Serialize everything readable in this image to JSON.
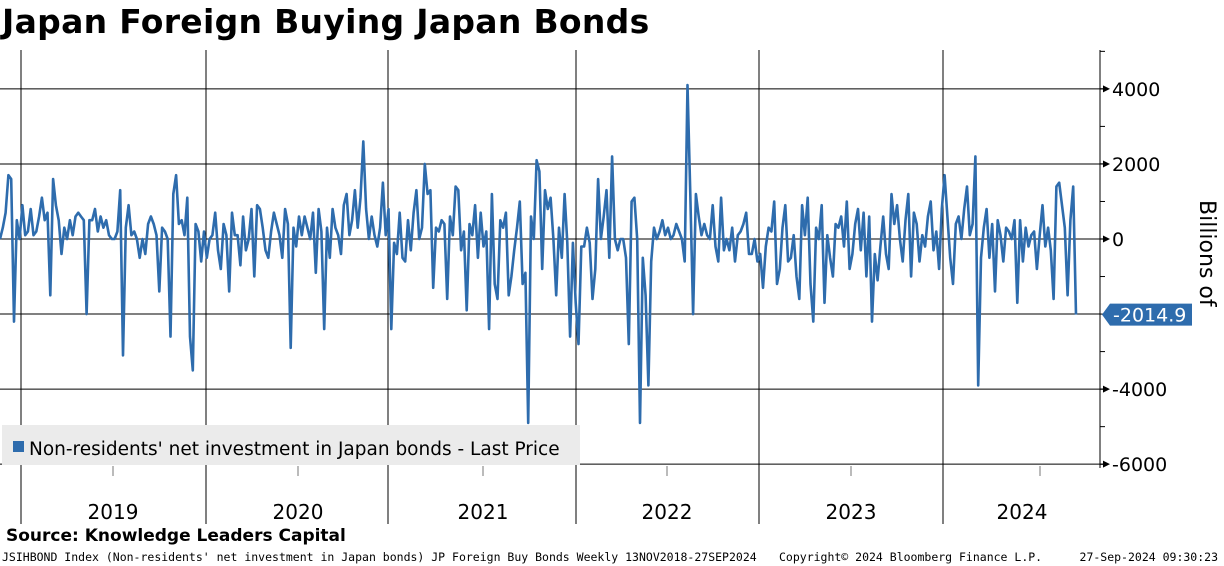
{
  "header": {
    "title": "Japan Foreign Buying Japan Bonds"
  },
  "footer": {
    "source": "Source: Knowledge Leaders Capital",
    "description": "JSIHBOND Index (Non-residents' net investment in Japan bonds) JP Foreign Buy Bonds  Weekly 13NOV2018-27SEP2024",
    "copyright": "Copyright© 2024 Bloomberg Finance L.P.",
    "timestamp": "27-Sep-2024 09:30:23"
  },
  "colors": {
    "series": "#2e6cad",
    "grid": "#000000",
    "legend_bg": "#ebebeb"
  },
  "chart_data": {
    "type": "line",
    "title": "Japan Foreign Buying Japan Bonds",
    "ylabel": "Billions of",
    "ylim": [
      -6200,
      5000
    ],
    "yticks": [
      4000,
      2000,
      0,
      -4000,
      -6000
    ],
    "ytick_labels": [
      "4000",
      "2000",
      "0",
      "-4000",
      "-6000"
    ],
    "xlim": [
      2018.87,
      2024.93
    ],
    "year_labels": [
      "2019",
      "2020",
      "2021",
      "2022",
      "2023",
      "2024"
    ],
    "year_centers": [
      2019.5,
      2020.5,
      2021.5,
      2022.5,
      2023.5,
      2024.37
    ],
    "year_boundaries": [
      2019,
      2020,
      2021,
      2022,
      2023,
      2024
    ],
    "legend": "Non-residents' net investment in Japan bonds - Last Price",
    "last_price": {
      "value": -2014.9,
      "label": "-2014.9"
    },
    "series": [
      {
        "name": "Non-residents' net investment in Japan bonds",
        "values": [
          0,
          300,
          700,
          1700,
          1600,
          -2200,
          500,
          0,
          900,
          100,
          200,
          800,
          100,
          200,
          600,
          1100,
          500,
          700,
          -1500,
          1600,
          900,
          500,
          -400,
          300,
          0,
          500,
          100,
          600,
          700,
          600,
          500,
          -2000,
          500,
          500,
          800,
          200,
          600,
          300,
          500,
          100,
          0,
          0,
          200,
          1300,
          -3100,
          300,
          900,
          100,
          200,
          0,
          -500,
          0,
          -400,
          400,
          600,
          400,
          100,
          -1400,
          300,
          200,
          0,
          -2600,
          1200,
          1700,
          400,
          500,
          100,
          1100,
          -2600,
          -3500,
          400,
          200,
          -600,
          200,
          -500,
          0,
          100,
          700,
          -300,
          -800,
          400,
          100,
          -1400,
          700,
          100,
          100,
          -700,
          600,
          -300,
          0,
          800,
          -1000,
          900,
          800,
          300,
          -300,
          -500,
          200,
          700,
          400,
          100,
          -500,
          800,
          400,
          -2900,
          300,
          -200,
          600,
          100,
          600,
          300,
          0,
          700,
          -900,
          800,
          200,
          -2400,
          300,
          -500,
          800,
          300,
          100,
          -400,
          900,
          1200,
          100,
          500,
          1300,
          300,
          1100,
          2600,
          800,
          0,
          600,
          100,
          -200,
          300,
          1500,
          100,
          800,
          -2400,
          -100,
          -400,
          700,
          -500,
          -600,
          500,
          -300,
          700,
          1300,
          0,
          300,
          2000,
          1200,
          1300,
          -1300,
          300,
          200,
          500,
          400,
          -1600,
          600,
          100,
          1400,
          1300,
          -300,
          200,
          -1900,
          400,
          100,
          900,
          -500,
          700,
          -200,
          200,
          -2400,
          1200,
          -1200,
          -1600,
          500,
          300,
          700,
          -1500,
          -1000,
          -300,
          300,
          1000,
          -1200,
          -900,
          -4900,
          600,
          0,
          2100,
          1800,
          -800,
          1300,
          800,
          1100,
          0,
          -1500,
          300,
          -500,
          1200,
          -100,
          -2600,
          -100,
          -1700,
          -2800,
          -200,
          -200,
          300,
          -100,
          -1600,
          -800,
          1600,
          0,
          600,
          1300,
          -500,
          2200,
          0,
          -300,
          0,
          0,
          -500,
          -2800,
          1000,
          1100,
          0,
          -4900,
          -500,
          -1500,
          -3900,
          -600,
          300,
          0,
          200,
          500,
          100,
          300,
          0,
          100,
          400,
          200,
          0,
          -600,
          4100,
          1200,
          -2000,
          1200,
          600,
          100,
          400,
          100,
          0,
          900,
          -200,
          -600,
          1100,
          -300,
          0,
          -300,
          300,
          -600,
          100,
          200,
          400,
          700,
          -400,
          -400,
          0,
          -600,
          -400,
          -1300,
          -200,
          300,
          200,
          1000,
          -1200,
          -800,
          300,
          900,
          -600,
          -500,
          100,
          -1000,
          -1600,
          900,
          100,
          1100,
          -1200,
          -2200,
          300,
          0,
          900,
          -1700,
          100,
          -500,
          -1000,
          400,
          300,
          600,
          -200,
          1000,
          -800,
          -400,
          400,
          800,
          -300,
          700,
          -1000,
          600,
          -2200,
          -400,
          -1100,
          -200,
          600,
          -400,
          -800,
          1200,
          400,
          900,
          0,
          -600,
          500,
          1200,
          -1000,
          700,
          400,
          -600,
          100,
          -200,
          600,
          1000,
          -300,
          200,
          -800,
          800,
          1700,
          600,
          -500,
          -1200,
          400,
          600,
          0,
          800,
          1400,
          100,
          400,
          2200,
          -3900,
          -500,
          300,
          800,
          -500,
          400,
          -1400,
          500,
          100,
          -600,
          300,
          200,
          0,
          500,
          -1700,
          500,
          -600,
          300,
          -200,
          100,
          200,
          -800,
          100,
          900,
          -200,
          300,
          -300,
          -1600,
          1400,
          1500,
          900,
          300,
          -1500,
          500,
          1400,
          -2014.9
        ]
      }
    ]
  }
}
